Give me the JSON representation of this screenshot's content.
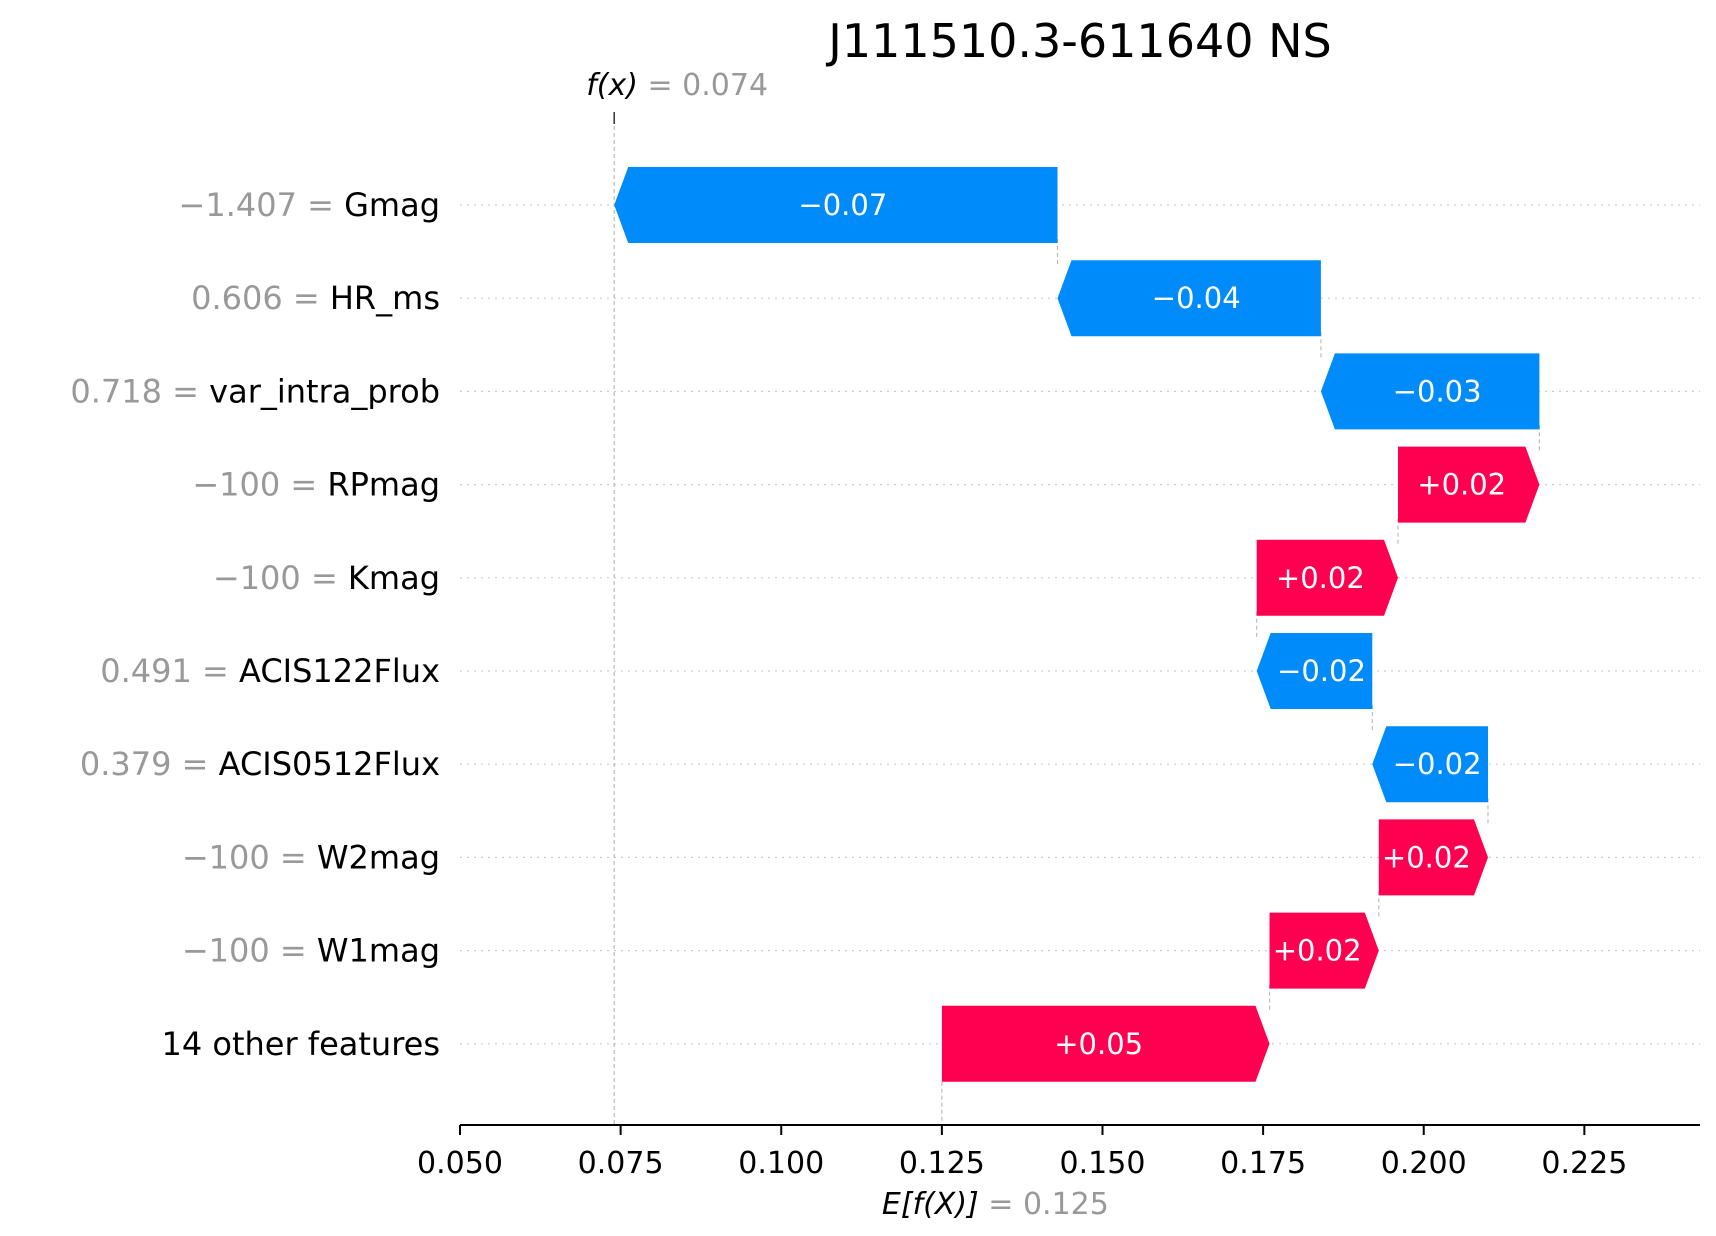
{
  "chart_data": {
    "type": "waterfall",
    "title": "J111510.3-611640 NS",
    "fx": {
      "label": "f(x)",
      "value": 0.074,
      "value_label": "0.074"
    },
    "base": {
      "label": "E[f(X)]",
      "value": 0.125,
      "value_label": "0.125"
    },
    "rows": [
      {
        "value_label": "−1.407",
        "feature": "Gmag",
        "contribution": -0.069,
        "contribution_label": "−0.07"
      },
      {
        "value_label": "0.606",
        "feature": "HR_ms",
        "contribution": -0.041,
        "contribution_label": "−0.04"
      },
      {
        "value_label": "0.718",
        "feature": "var_intra_prob",
        "contribution": -0.034,
        "contribution_label": "−0.03"
      },
      {
        "value_label": "−100",
        "feature": "RPmag",
        "contribution": 0.022,
        "contribution_label": "+0.02"
      },
      {
        "value_label": "−100",
        "feature": "Kmag",
        "contribution": 0.022,
        "contribution_label": "+0.02"
      },
      {
        "value_label": "0.491",
        "feature": "ACIS122Flux",
        "contribution": -0.018,
        "contribution_label": "−0.02"
      },
      {
        "value_label": "0.379",
        "feature": "ACIS0512Flux",
        "contribution": -0.018,
        "contribution_label": "−0.02"
      },
      {
        "value_label": "−100",
        "feature": "W2mag",
        "contribution": 0.017,
        "contribution_label": "+0.02"
      },
      {
        "value_label": "−100",
        "feature": "W1mag",
        "contribution": 0.017,
        "contribution_label": "+0.02"
      },
      {
        "value_label": "",
        "feature": "14 other features",
        "contribution": 0.051,
        "contribution_label": "+0.05"
      }
    ],
    "xlim": [
      0.05,
      0.243
    ],
    "xticks": [
      0.05,
      0.075,
      0.1,
      0.125,
      0.15,
      0.175,
      0.2,
      0.225
    ],
    "xtick_labels": [
      "0.050",
      "0.075",
      "0.100",
      "0.125",
      "0.150",
      "0.175",
      "0.200",
      "0.225"
    ],
    "grid": true,
    "colors": {
      "positive": "#ff0051",
      "negative": "#008bfb",
      "muted": "#999999"
    }
  }
}
